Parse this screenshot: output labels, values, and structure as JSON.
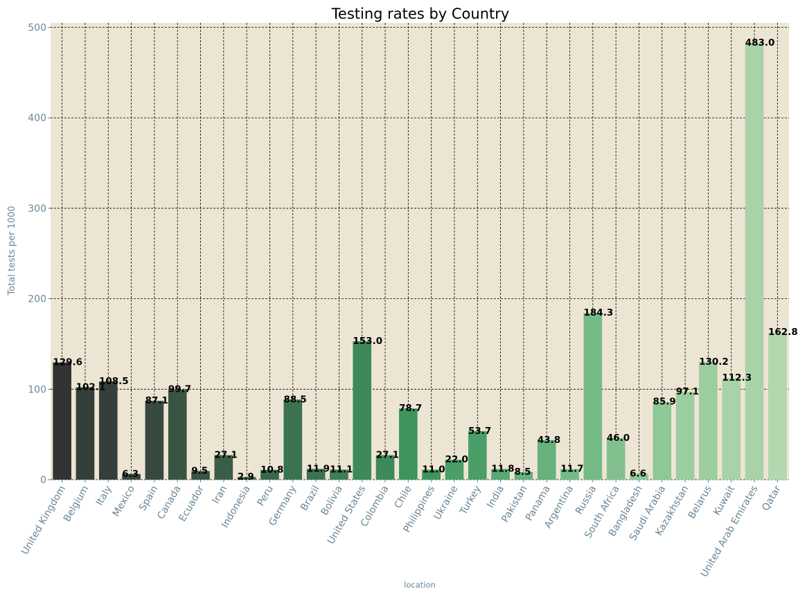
{
  "chart_data": {
    "type": "bar",
    "title": "Testing rates by Country",
    "xlabel": "location",
    "ylabel": "Total tests per 1000",
    "ylim": [
      0,
      505
    ],
    "yticks": [
      0,
      100,
      200,
      300,
      400,
      500
    ],
    "grid": true,
    "categories": [
      "United Kingdom",
      "Belgium",
      "Italy",
      "Mexico",
      "Spain",
      "Canada",
      "Ecuador",
      "Iran",
      "Indonesia",
      "Peru",
      "Germany",
      "Brazil",
      "Bolivia",
      "United States",
      "Colombia",
      "Chile",
      "Philippines",
      "Ukraine",
      "Turkey",
      "India",
      "Pakistan",
      "Panama",
      "Argentina",
      "Russia",
      "South Africa",
      "Bangladesh",
      "Saudi Arabia",
      "Kazakhstan",
      "Belarus",
      "Kuwait",
      "United Arab Emirates",
      "Qatar"
    ],
    "values": [
      129.6,
      102.1,
      108.5,
      6.3,
      87.1,
      99.7,
      9.5,
      27.1,
      2.9,
      10.8,
      88.5,
      11.9,
      11.1,
      153.0,
      27.1,
      78.7,
      11.0,
      22.0,
      53.7,
      11.8,
      8.5,
      43.8,
      11.7,
      184.3,
      46.0,
      6.6,
      85.9,
      97.1,
      130.2,
      112.3,
      483.0,
      162.8
    ],
    "value_labels": [
      "129.6",
      "102.1",
      "108.5",
      "6.3",
      "87.1",
      "99.7",
      "9.5",
      "27.1",
      "2.9",
      "10.8",
      "88.5",
      "11.9",
      "11.1",
      "153.0",
      "27.1",
      "78.7",
      "11.0",
      "22.0",
      "53.7",
      "11.8",
      "8.5",
      "43.8",
      "11.7",
      "184.3",
      "46.0",
      "6.6",
      "85.9",
      "97.1",
      "130.2",
      "112.3",
      "483.0",
      "162.8"
    ],
    "colors": {
      "background": "#ede5d3",
      "grid": "#000000",
      "ticks": "#6a8596",
      "bar_palette": [
        "#333333",
        "#353f39",
        "#37493e",
        "#385443",
        "#395e47",
        "#3a684c",
        "#3b7351",
        "#3c7e55",
        "#3e895a",
        "#3f945e",
        "#4a9e68",
        "#58a872",
        "#66b17c",
        "#74ba86",
        "#82c18f",
        "#8fc797",
        "#9ccd9f",
        "#a8d3a8",
        "#b1d8af"
      ]
    }
  }
}
